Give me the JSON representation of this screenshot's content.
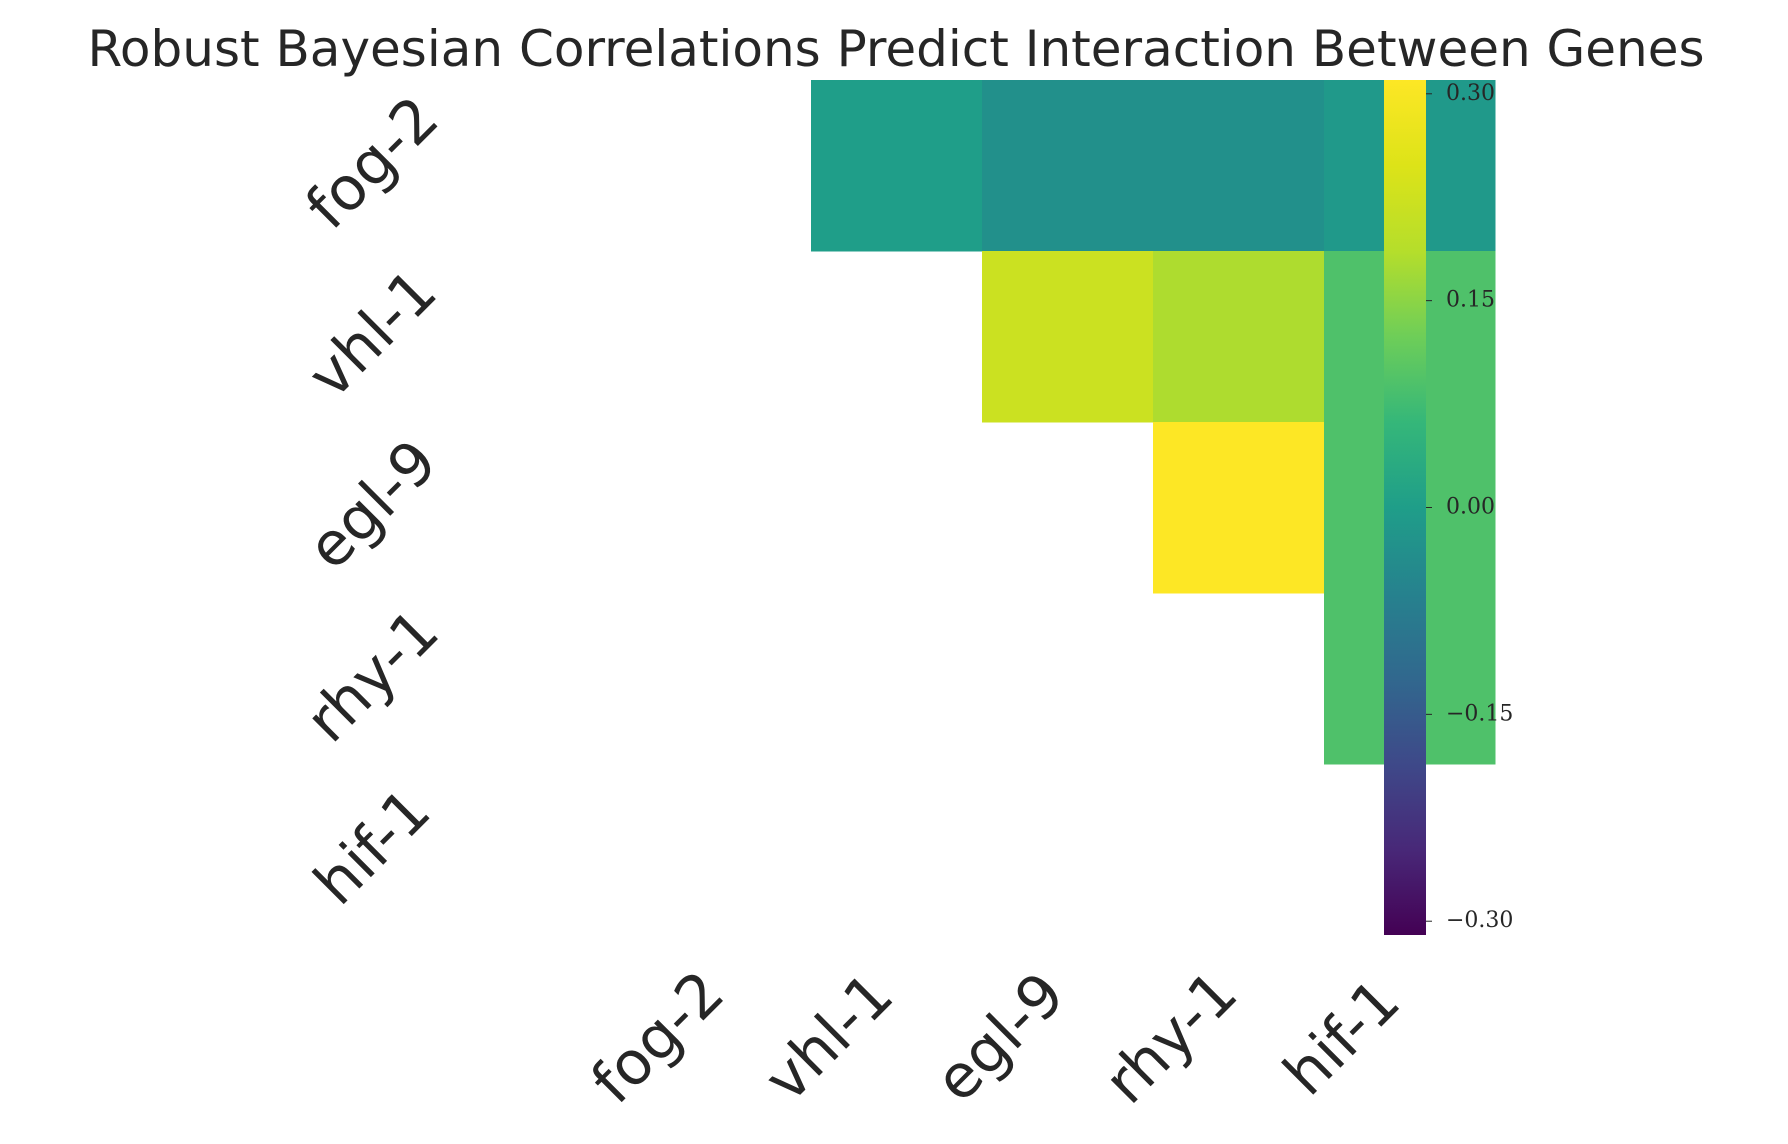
{
  "chart_data": {
    "type": "heatmap",
    "title": "Robust Bayesian Correlations Predict Interaction Between Genes",
    "rows": [
      "fog-2",
      "vhl-1",
      "egl-9",
      "rhy-1",
      "hif-1"
    ],
    "columns": [
      "fog-2",
      "vhl-1",
      "egl-9",
      "rhy-1",
      "hif-1"
    ],
    "mask": "lower triangle including diagonal",
    "values": [
      [
        null,
        0.0,
        -0.03,
        -0.03,
        -0.01
      ],
      [
        null,
        null,
        0.22,
        0.18,
        0.09
      ],
      [
        null,
        null,
        null,
        0.31,
        0.09
      ],
      [
        null,
        null,
        null,
        null,
        0.09
      ],
      [
        null,
        null,
        null,
        null,
        null
      ]
    ],
    "colormap": "viridis",
    "vmin": -0.31,
    "vmax": 0.31,
    "colorbar": {
      "ticks": [
        0.3,
        0.15,
        0.0,
        -0.15,
        -0.3
      ],
      "tick_labels": [
        "0.30",
        "0.15",
        "0.00",
        "−0.15",
        "−0.30"
      ]
    }
  }
}
